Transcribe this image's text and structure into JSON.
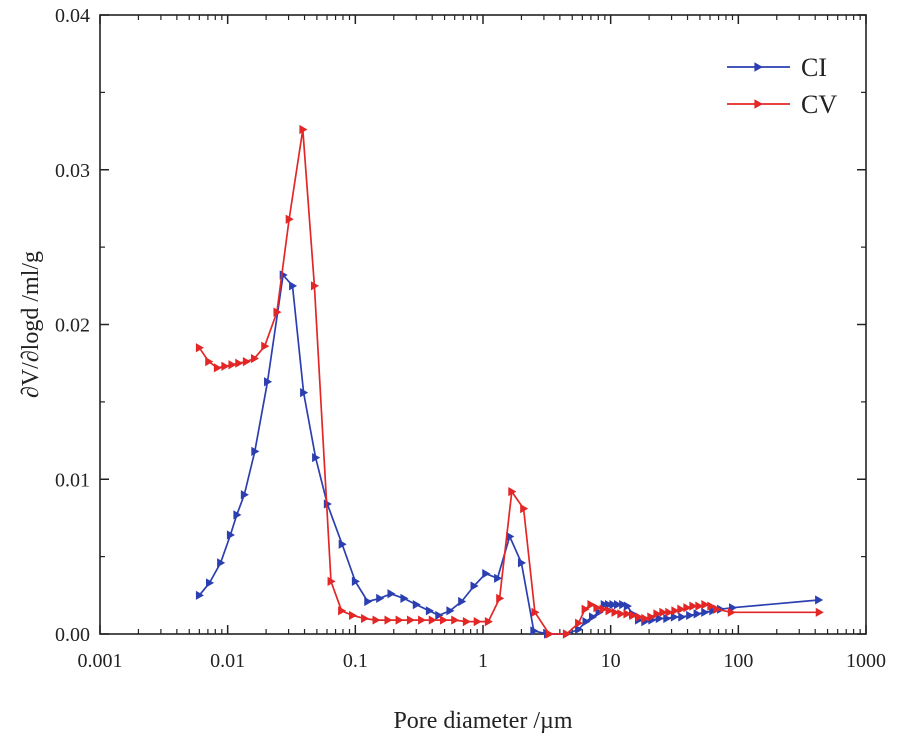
{
  "chart_data": {
    "type": "line",
    "title": "",
    "xlabel": "Pore diameter /µm",
    "ylabel": "∂V/∂logd /ml/g",
    "xscale": "log",
    "xlim": [
      0.001,
      1000
    ],
    "ylim": [
      0,
      0.04
    ],
    "xticks": [
      0.001,
      0.01,
      0.1,
      1,
      10,
      100,
      1000
    ],
    "xtick_labels": [
      "0.001",
      "0.01",
      "0.1",
      "1",
      "10",
      "100",
      "1000"
    ],
    "yticks": [
      0,
      0.01,
      0.02,
      0.03,
      0.04
    ],
    "ytick_labels": [
      "0.00",
      "0.01",
      "0.02",
      "0.03",
      "0.04"
    ],
    "legend_position": "top-right",
    "grid": false,
    "series": [
      {
        "name": "CI",
        "color": "#2b3fb0",
        "marker": "triangle-right",
        "points": [
          [
            0.006,
            0.0025
          ],
          [
            0.0072,
            0.0033
          ],
          [
            0.0088,
            0.0046
          ],
          [
            0.0105,
            0.0064
          ],
          [
            0.0118,
            0.0077
          ],
          [
            0.0135,
            0.009
          ],
          [
            0.0163,
            0.0118
          ],
          [
            0.0205,
            0.0163
          ],
          [
            0.0272,
            0.0232
          ],
          [
            0.0322,
            0.0225
          ],
          [
            0.0393,
            0.0156
          ],
          [
            0.0488,
            0.0114
          ],
          [
            0.0603,
            0.0084
          ],
          [
            0.0788,
            0.0058
          ],
          [
            0.1,
            0.0034
          ],
          [
            0.125,
            0.0021
          ],
          [
            0.155,
            0.0023
          ],
          [
            0.19,
            0.0026
          ],
          [
            0.24,
            0.0023
          ],
          [
            0.3,
            0.0019
          ],
          [
            0.38,
            0.0015
          ],
          [
            0.45,
            0.0012
          ],
          [
            0.55,
            0.0015
          ],
          [
            0.68,
            0.0021
          ],
          [
            0.85,
            0.0031
          ],
          [
            1.05,
            0.0039
          ],
          [
            1.3,
            0.0036
          ],
          [
            1.62,
            0.0063
          ],
          [
            2.0,
            0.0046
          ],
          [
            2.5,
            0.0002
          ],
          [
            3.2,
            0.0
          ],
          [
            4.5,
            0.0
          ],
          [
            5.6,
            0.0003
          ],
          [
            6.4,
            0.0008
          ],
          [
            7.2,
            0.0011
          ],
          [
            8.1,
            0.0014
          ],
          [
            8.9,
            0.0019
          ],
          [
            9.6,
            0.0019
          ],
          [
            10.4,
            0.0019
          ],
          [
            11.3,
            0.0019
          ],
          [
            12.4,
            0.0019
          ],
          [
            13.5,
            0.0018
          ],
          [
            14.8,
            0.0013
          ],
          [
            16.5,
            0.0009
          ],
          [
            18.5,
            0.0008
          ],
          [
            21.0,
            0.0009
          ],
          [
            24.0,
            0.001
          ],
          [
            27.5,
            0.001
          ],
          [
            31.5,
            0.0011
          ],
          [
            36.0,
            0.0011
          ],
          [
            41.5,
            0.0012
          ],
          [
            47.5,
            0.0013
          ],
          [
            54.5,
            0.0014
          ],
          [
            63.0,
            0.0015
          ],
          [
            72.5,
            0.0016
          ],
          [
            90.0,
            0.0017
          ],
          [
            425.0,
            0.0022
          ]
        ]
      },
      {
        "name": "CV",
        "color": "#e32727",
        "marker": "triangle-right",
        "points": [
          [
            0.006,
            0.0185
          ],
          [
            0.0071,
            0.0176
          ],
          [
            0.0083,
            0.0172
          ],
          [
            0.0095,
            0.0173
          ],
          [
            0.0108,
            0.0174
          ],
          [
            0.0122,
            0.0175
          ],
          [
            0.014,
            0.0176
          ],
          [
            0.0162,
            0.0178
          ],
          [
            0.0195,
            0.0186
          ],
          [
            0.0243,
            0.0208
          ],
          [
            0.0303,
            0.0268
          ],
          [
            0.0388,
            0.0326
          ],
          [
            0.0478,
            0.0225
          ],
          [
            0.0645,
            0.0034
          ],
          [
            0.078,
            0.0015
          ],
          [
            0.095,
            0.0012
          ],
          [
            0.118,
            0.001
          ],
          [
            0.145,
            0.0009
          ],
          [
            0.18,
            0.0009
          ],
          [
            0.22,
            0.0009
          ],
          [
            0.27,
            0.0009
          ],
          [
            0.33,
            0.0009
          ],
          [
            0.4,
            0.0009
          ],
          [
            0.49,
            0.0009
          ],
          [
            0.6,
            0.0009
          ],
          [
            0.74,
            0.0008
          ],
          [
            0.9,
            0.0008
          ],
          [
            1.1,
            0.0008
          ],
          [
            1.35,
            0.0023
          ],
          [
            1.68,
            0.0092
          ],
          [
            2.08,
            0.0081
          ],
          [
            2.55,
            0.0014
          ],
          [
            3.3,
            0.0
          ],
          [
            4.5,
            0.0
          ],
          [
            5.6,
            0.0007
          ],
          [
            6.3,
            0.0016
          ],
          [
            7.0,
            0.0019
          ],
          [
            7.8,
            0.0017
          ],
          [
            8.7,
            0.0016
          ],
          [
            9.7,
            0.0015
          ],
          [
            10.8,
            0.0014
          ],
          [
            12.0,
            0.0013
          ],
          [
            13.4,
            0.0013
          ],
          [
            14.9,
            0.0012
          ],
          [
            16.6,
            0.0011
          ],
          [
            18.5,
            0.001
          ],
          [
            20.6,
            0.0011
          ],
          [
            23.0,
            0.0013
          ],
          [
            25.6,
            0.0014
          ],
          [
            28.5,
            0.0014
          ],
          [
            31.8,
            0.0015
          ],
          [
            35.4,
            0.0016
          ],
          [
            39.5,
            0.0017
          ],
          [
            44.0,
            0.0018
          ],
          [
            49.0,
            0.0018
          ],
          [
            54.6,
            0.0019
          ],
          [
            60.8,
            0.0018
          ],
          [
            67.8,
            0.0016
          ],
          [
            88.0,
            0.0014
          ],
          [
            430.0,
            0.0014
          ]
        ]
      }
    ]
  }
}
